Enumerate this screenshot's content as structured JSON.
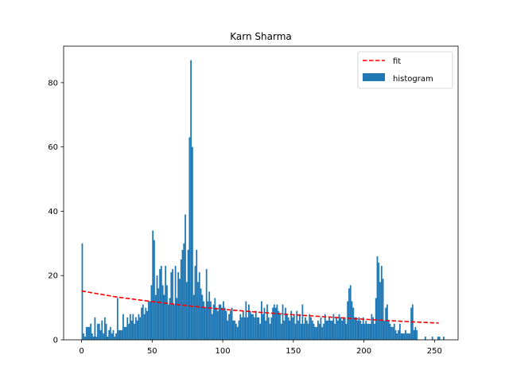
{
  "chart_data": {
    "type": "bar",
    "title": "Karn Sharma",
    "xlabel": "",
    "ylabel": "",
    "xlim": [
      -12.7,
      266.7
    ],
    "ylim": [
      0,
      91.35
    ],
    "xticks": [
      0,
      50,
      100,
      150,
      200,
      250
    ],
    "yticks": [
      0,
      20,
      40,
      60,
      80
    ],
    "grid": false,
    "legend_position": "top-right",
    "colors": {
      "histogram": "#1f77b4",
      "fit": "#ff0000",
      "axes": "#000000"
    },
    "series": [
      {
        "name": "histogram",
        "type": "bar",
        "x_start": 0,
        "bin_width": 1,
        "values": [
          30,
          2,
          1,
          4,
          4,
          4,
          5,
          2,
          1,
          7,
          1,
          5,
          5,
          3,
          6,
          2,
          7,
          5,
          1,
          3,
          4,
          2,
          3,
          1,
          2,
          13,
          3,
          3,
          3,
          8,
          4,
          4,
          7,
          5,
          8,
          6,
          8,
          5,
          7,
          6,
          8,
          7,
          10,
          11,
          8,
          10,
          9,
          12,
          12,
          17,
          34,
          31,
          14,
          20,
          16,
          22,
          23,
          17,
          14,
          23,
          17,
          11,
          13,
          21,
          22,
          11,
          23,
          13,
          21,
          19,
          25,
          28,
          30,
          39,
          18,
          28,
          63,
          87,
          60,
          14,
          23,
          28,
          18,
          21,
          16,
          14,
          12,
          10,
          22,
          12,
          15,
          12,
          8,
          11,
          13,
          10,
          9,
          11,
          11,
          10,
          12,
          10,
          9,
          6,
          8,
          9,
          10,
          6,
          6,
          5,
          4,
          6,
          8,
          7,
          9,
          7,
          12,
          7,
          11,
          9,
          8,
          8,
          7,
          9,
          7,
          7,
          5,
          12,
          8,
          10,
          6,
          11,
          7,
          5,
          7,
          10,
          11,
          10,
          11,
          9,
          8,
          5,
          11,
          6,
          10,
          8,
          7,
          6,
          9,
          7,
          8,
          5,
          9,
          6,
          8,
          5,
          11,
          5,
          7,
          6,
          5,
          8,
          7,
          6,
          5,
          4,
          4,
          6,
          5,
          7,
          4,
          5,
          8,
          6,
          6,
          7,
          6,
          6,
          8,
          5,
          7,
          6,
          8,
          7,
          6,
          7,
          7,
          5,
          12,
          16,
          17,
          12,
          10,
          7,
          7,
          6,
          7,
          6,
          5,
          7,
          5,
          6,
          5,
          5,
          5,
          8,
          7,
          5,
          13,
          26,
          24,
          18,
          23,
          19,
          6,
          10,
          11,
          6,
          5,
          4,
          4,
          5,
          3,
          2,
          3,
          5,
          2,
          2,
          2,
          3,
          2,
          2,
          2,
          10,
          11,
          3,
          4,
          3,
          0,
          0,
          0,
          0,
          0,
          1,
          0,
          0,
          0,
          0,
          1,
          0,
          0,
          0,
          1,
          1,
          0,
          0,
          1
        ]
      },
      {
        "name": "fit",
        "type": "line",
        "style": "dashed",
        "x": [
          0,
          25,
          50,
          75,
          100,
          125,
          150,
          175,
          200,
          225,
          253
        ],
        "values": [
          15.2,
          13.3,
          11.9,
          10.6,
          9.5,
          8.6,
          7.8,
          7.1,
          6.4,
          5.8,
          5.2
        ]
      }
    ]
  }
}
